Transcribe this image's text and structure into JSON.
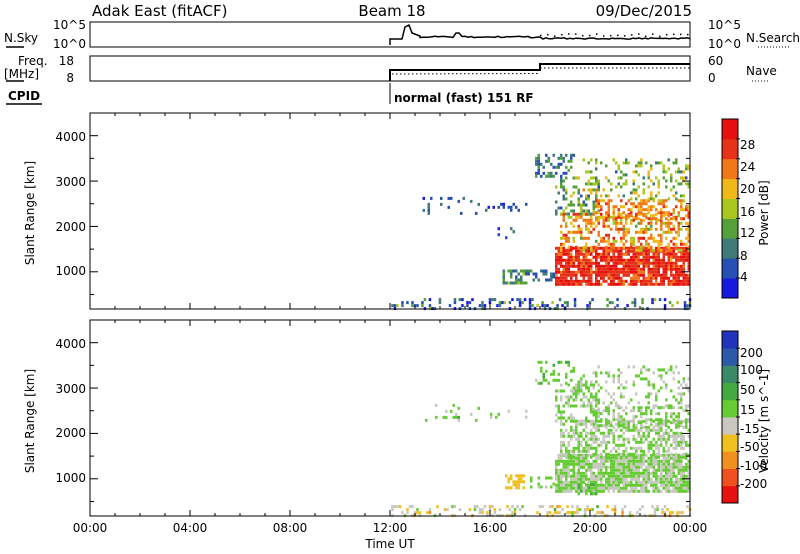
{
  "header": {
    "radar_name": "Adak East (fitACF)",
    "beam": "Beam 18",
    "date": "09/Dec/2015"
  },
  "status_panels": {
    "nsky_label": "N.Sky",
    "nsky_ticks": [
      "10^5",
      "10^0"
    ],
    "nsearch_label": "N.Search",
    "freq_label_top": "Freq.",
    "freq_label_unit": "[MHz]",
    "freq_ticks": [
      "18",
      "8"
    ],
    "nave_label": "Nave",
    "nave_ticks": [
      "60",
      "0"
    ],
    "cpid_label": "CPID",
    "cpid_text": "normal (fast) 151 RF"
  },
  "axes": {
    "ylabel": "Slant Range [km]",
    "xlabel": "Time UT",
    "yticks": [
      "1000",
      "2000",
      "3000",
      "4000"
    ],
    "xticks": [
      "00:00",
      "04:00",
      "08:00",
      "12:00",
      "16:00",
      "20:00",
      "00:00"
    ]
  },
  "colorbars": {
    "power": {
      "label": "Power [dB]",
      "ticks": [
        "4",
        "8",
        "12",
        "16",
        "20",
        "24",
        "28"
      ],
      "colors": [
        "#1818e0",
        "#2850b4",
        "#3e7a78",
        "#56a03c",
        "#a8c820",
        "#f0b818",
        "#f07818",
        "#e63218",
        "#e61010"
      ]
    },
    "velocity": {
      "label": "Velocity [m s^-1]",
      "ticks": [
        "200",
        "100",
        "50",
        "15",
        "-15",
        "-50",
        "-100",
        "-200"
      ],
      "colors": [
        "#2233bb",
        "#2c5aa8",
        "#3a8a6a",
        "#44aa40",
        "#66cc33",
        "#c8c8c0",
        "#f0c020",
        "#f09020",
        "#f05020",
        "#e61010"
      ]
    }
  },
  "chart_data": [
    {
      "type": "heatmap",
      "title": "Power",
      "x_unit": "hours UT",
      "xlim": [
        0,
        24
      ],
      "ylim": [
        180,
        4500
      ],
      "colorbar_range": [
        0,
        30
      ],
      "regions": [
        {
          "x": [
            11.95,
            24.0
          ],
          "y": [
            180,
            420
          ],
          "value": 6,
          "spread": 8,
          "density": 0.28
        },
        {
          "x": [
            13.2,
            15.5
          ],
          "y": [
            2300,
            2650
          ],
          "value": 6,
          "spread": 3,
          "density": 0.12
        },
        {
          "x": [
            15.8,
            17.5
          ],
          "y": [
            2380,
            2520
          ],
          "value": 5,
          "spread": 3,
          "density": 0.35
        },
        {
          "x": [
            16.2,
            17.3
          ],
          "y": [
            1750,
            2050
          ],
          "value": 6,
          "spread": 3,
          "density": 0.1
        },
        {
          "x": [
            16.5,
            17.6
          ],
          "y": [
            780,
            1050
          ],
          "value": 10,
          "spread": 4,
          "density": 0.55
        },
        {
          "x": [
            17.4,
            18.6
          ],
          "y": [
            800,
            1050
          ],
          "value": 7,
          "spread": 3,
          "density": 0.45
        },
        {
          "x": [
            18.6,
            24.0
          ],
          "y": [
            700,
            1550
          ],
          "value": 26,
          "spread": 4,
          "density": 0.85
        },
        {
          "x": [
            18.8,
            24.0
          ],
          "y": [
            1450,
            2300
          ],
          "value": 20,
          "spread": 6,
          "density": 0.45
        },
        {
          "x": [
            18.6,
            20.4
          ],
          "y": [
            2250,
            3100
          ],
          "value": 11,
          "spread": 5,
          "density": 0.35
        },
        {
          "x": [
            20.2,
            24.0
          ],
          "y": [
            2200,
            2600
          ],
          "value": 21,
          "spread": 4,
          "density": 0.45
        },
        {
          "x": [
            19.5,
            24.0
          ],
          "y": [
            2600,
            3500
          ],
          "value": 14,
          "spread": 6,
          "density": 0.22
        },
        {
          "x": [
            17.8,
            19.4
          ],
          "y": [
            3100,
            3600
          ],
          "value": 8,
          "spread": 4,
          "density": 0.3
        }
      ]
    },
    {
      "type": "heatmap",
      "title": "Velocity",
      "x_unit": "hours UT",
      "xlim": [
        0,
        24
      ],
      "ylim": [
        180,
        4500
      ],
      "colorbar_range": [
        -250,
        250
      ],
      "regions": [
        {
          "x": [
            11.95,
            24.0
          ],
          "y": [
            180,
            420
          ],
          "value": -40,
          "spread": 60,
          "density": 0.3
        },
        {
          "x": [
            13.2,
            15.5
          ],
          "y": [
            2300,
            2650
          ],
          "value": 0,
          "spread": 40,
          "density": 0.08
        },
        {
          "x": [
            15.8,
            17.5
          ],
          "y": [
            2380,
            2520
          ],
          "value": 0,
          "spread": 25,
          "density": 0.2
        },
        {
          "x": [
            16.6,
            17.4
          ],
          "y": [
            780,
            1100
          ],
          "value": -70,
          "spread": 12,
          "density": 0.6
        },
        {
          "x": [
            17.4,
            18.6
          ],
          "y": [
            850,
            1050
          ],
          "value": 5,
          "spread": 15,
          "density": 0.3
        },
        {
          "x": [
            18.6,
            24.0
          ],
          "y": [
            700,
            1550
          ],
          "value": 0,
          "spread": 8,
          "density": 0.88
        },
        {
          "x": [
            19.5,
            20.3
          ],
          "y": [
            700,
            900
          ],
          "value": 45,
          "spread": 10,
          "density": 0.6
        },
        {
          "x": [
            18.8,
            24.0
          ],
          "y": [
            1450,
            2300
          ],
          "value": 0,
          "spread": 10,
          "density": 0.5
        },
        {
          "x": [
            20.2,
            24.0
          ],
          "y": [
            2200,
            2600
          ],
          "value": 0,
          "spread": 10,
          "density": 0.45
        },
        {
          "x": [
            18.6,
            20.4
          ],
          "y": [
            2250,
            3100
          ],
          "value": 0,
          "spread": 15,
          "density": 0.35
        },
        {
          "x": [
            19.5,
            24.0
          ],
          "y": [
            2600,
            3500
          ],
          "value": 0,
          "spread": 30,
          "density": 0.2
        },
        {
          "x": [
            17.8,
            19.4
          ],
          "y": [
            3100,
            3600
          ],
          "value": 30,
          "spread": 25,
          "density": 0.25
        }
      ]
    }
  ]
}
